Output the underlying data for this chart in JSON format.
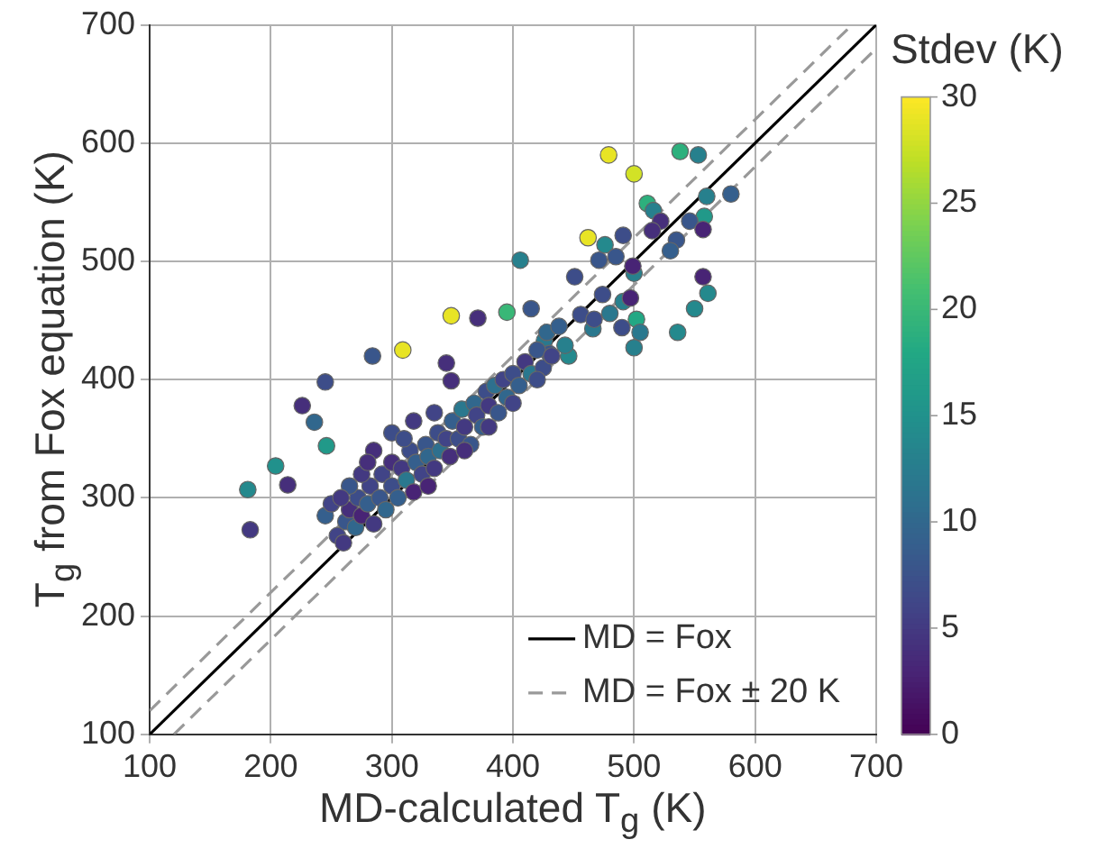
{
  "chart_data": {
    "type": "scatter",
    "xlabel": "MD-calculated T$_{g}$ (K)",
    "ylabel": "T$_{g}$ from Fox equation (K)",
    "clabel": "Stdev (K)",
    "xlim": [
      100,
      700
    ],
    "xticks": [
      100,
      200,
      300,
      400,
      500,
      600,
      700
    ],
    "ylim": [
      100,
      700
    ],
    "yticks": [
      100,
      200,
      300,
      400,
      500,
      600,
      700
    ],
    "clim": [
      0,
      30
    ],
    "cticks": [
      0,
      5,
      10,
      15,
      20,
      25,
      30
    ],
    "grid": true,
    "legend": "bottom right",
    "marker": "circle",
    "series": [
      {
        "type": "line",
        "name": "MD = Fox",
        "color": "#000000",
        "line_style": "solid",
        "marker": "none",
        "x": [
          100,
          700
        ],
        "values": [
          100,
          700
        ]
      },
      {
        "type": "line",
        "name": "MD = Fox ± 20 K",
        "color": "#999999",
        "line_style": "dashed",
        "marker": "none",
        "x": [
          100,
          680
        ],
        "values": [
          120,
          700
        ]
      },
      {
        "type": "line",
        "color": "#999999",
        "line_style": "dashed",
        "marker": "none",
        "x": [
          120,
          700
        ],
        "values": [
          100,
          680
        ]
      },
      {
        "type": "scatter",
        "x": [
          181,
          183,
          204,
          214,
          246,
          236,
          226,
          245,
          284,
          309,
          345,
          349,
          349,
          371,
          395,
          406,
          479,
          500,
          538,
          553,
          580,
          560,
          558,
          546,
          557,
          535,
          530,
          511,
          516,
          522,
          515,
          462,
          476,
          491,
          471,
          485,
          451,
          500,
          499,
          474,
          491,
          557,
          561,
          550,
          536,
          502,
          505,
          500,
          466,
          446,
          490,
          480,
          497,
          415,
          456,
          467,
          426,
          443,
          430,
          255,
          260,
          262,
          265,
          270,
          272,
          275,
          280,
          282,
          285,
          290,
          292,
          295,
          300,
          300,
          305,
          308,
          312,
          315,
          318,
          320,
          325,
          328,
          330,
          335,
          338,
          340,
          345,
          348,
          350,
          355,
          358,
          360,
          365,
          368,
          370,
          375,
          378,
          380,
          385,
          388,
          392,
          395,
          400,
          405,
          410,
          415,
          420,
          425,
          428,
          432,
          438,
          275,
          285,
          300,
          318,
          335,
          265,
          280,
          310,
          245,
          250,
          258,
          330,
          360,
          380,
          400,
          420
        ],
        "values": [
          307,
          273,
          327,
          311,
          344,
          364,
          378,
          398,
          420,
          425,
          414,
          399,
          454,
          452,
          457,
          501,
          590,
          574,
          593,
          590,
          557,
          555,
          538,
          534,
          527,
          518,
          509,
          549,
          543,
          534,
          526,
          520,
          514,
          522,
          501,
          504,
          487,
          490,
          496,
          472,
          466,
          487,
          473,
          460,
          440,
          451,
          440,
          427,
          443,
          420,
          444,
          456,
          469,
          460,
          455,
          451,
          433,
          429,
          422,
          268,
          262,
          280,
          290,
          275,
          300,
          285,
          295,
          310,
          278,
          300,
          320,
          290,
          310,
          330,
          300,
          325,
          315,
          340,
          305,
          330,
          320,
          345,
          335,
          325,
          355,
          340,
          350,
          335,
          365,
          350,
          375,
          360,
          345,
          380,
          370,
          360,
          390,
          378,
          395,
          372,
          400,
          385,
          405,
          395,
          415,
          405,
          425,
          410,
          440,
          420,
          445,
          320,
          340,
          355,
          365,
          372,
          310,
          330,
          350,
          285,
          295,
          300,
          310,
          340,
          360,
          380,
          400
        ],
        "colors": [
          "#24898d",
          "#433981",
          "#21918c",
          "#462f7b",
          "#219989",
          "#31678d",
          "#462f7b",
          "#3d4d89",
          "#39568b",
          "#e8e425",
          "#462f7b",
          "#462f7b",
          "#e8e425",
          "#462f7b",
          "#39b777",
          "#27808d",
          "#e8e425",
          "#d2e226",
          "#2db07d",
          "#27808d",
          "#355f8d",
          "#27808d",
          "#219989",
          "#39568b",
          "#482475",
          "#39568b",
          "#355f8d",
          "#2db07d",
          "#27808d",
          "#462f7b",
          "#462f7b",
          "#e8e425",
          "#24898d",
          "#3d4d89",
          "#39568b",
          "#39568b",
          "#3d4d89",
          "#27808d",
          "#482475",
          "#3d4d89",
          "#27808d",
          "#482475",
          "#24898d",
          "#24898d",
          "#24898d",
          "#22a884",
          "#2a788e",
          "#27808d",
          "#2a788e",
          "#24898d",
          "#3d4d89",
          "#2a788e",
          "#482475",
          "#39568b",
          "#3d4d89",
          "#3d4d89",
          "#2a788e",
          "#27808d",
          "#39568b",
          "#414487",
          "#433981",
          "#39568b",
          "#462f7b",
          "#31678d",
          "#3d4d89",
          "#482475",
          "#355f8d",
          "#414487",
          "#433981",
          "#39568b",
          "#414487",
          "#31678d",
          "#3d4d89",
          "#462f7b",
          "#355f8d",
          "#433981",
          "#2a788e",
          "#3d4d89",
          "#482475",
          "#355f8d",
          "#414487",
          "#39568b",
          "#31678d",
          "#433981",
          "#3d4d89",
          "#2e708e",
          "#414487",
          "#462f7b",
          "#355f8d",
          "#3d4d89",
          "#2a788e",
          "#433981",
          "#39568b",
          "#31678d",
          "#414487",
          "#355f8d",
          "#3d4d89",
          "#433981",
          "#2e708e",
          "#39568b",
          "#414487",
          "#31678d",
          "#3d4d89",
          "#355f8d",
          "#433981",
          "#2a788e",
          "#39568b",
          "#3d4d89",
          "#31678d",
          "#414487",
          "#355f8d",
          "#433981",
          "#462f7b",
          "#3d4d89",
          "#433981",
          "#414487",
          "#39568b",
          "#462f7b",
          "#3d4d89",
          "#355f8d",
          "#414487",
          "#433981",
          "#482475",
          "#462f7b",
          "#433981",
          "#414487",
          "#3d4d89"
        ]
      }
    ]
  }
}
